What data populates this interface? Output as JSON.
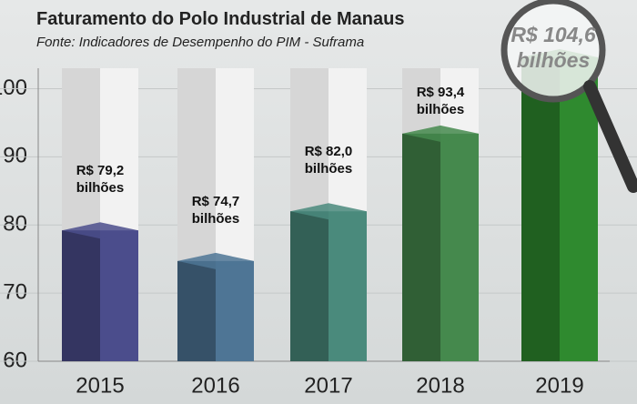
{
  "chart_data": {
    "type": "bar",
    "title": "Faturamento do Polo Industrial de Manaus",
    "subtitle": "Fonte: Indicadores de Desempenho do PIM - Suframa",
    "categories": [
      "2015",
      "2016",
      "2017",
      "2018",
      "2019"
    ],
    "values": [
      79.2,
      74.7,
      82.0,
      93.4,
      104.6
    ],
    "value_labels": [
      "R$ 79,2 bilhões",
      "R$ 74,7 bilhões",
      "R$ 82,0 bilhões",
      "R$ 93,4 bilhões",
      "R$ 104,6 bilhões"
    ],
    "colors": [
      "#4b4d8c",
      "#4e7595",
      "#4a8a7c",
      "#45894d",
      "#2f8a2f"
    ],
    "ylim": [
      60,
      103
    ],
    "yticks": [
      60,
      70,
      80,
      90,
      100
    ],
    "grid": true
  }
}
